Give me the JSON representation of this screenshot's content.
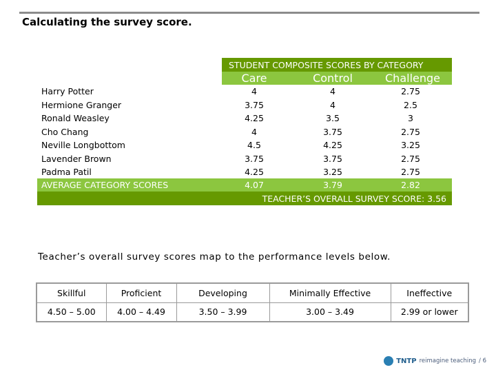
{
  "title": "Calculating the survey score.",
  "table": {
    "header": "STUDENT COMPOSITE SCORES BY CATEGORY",
    "columns": [
      "Care",
      "Control",
      "Challenge"
    ],
    "rows": [
      {
        "name": "Harry Potter",
        "care": "4",
        "control": "4",
        "challenge": "2.75"
      },
      {
        "name": "Hermione Granger",
        "care": "3.75",
        "control": "4",
        "challenge": "2.5"
      },
      {
        "name": "Ronald Weasley",
        "care": "4.25",
        "control": "3.5",
        "challenge": "3"
      },
      {
        "name": "Cho Chang",
        "care": "4",
        "control": "3.75",
        "challenge": "2.75"
      },
      {
        "name": "Neville Longbottom",
        "care": "4.5",
        "control": "4.25",
        "challenge": "3.25"
      },
      {
        "name": "Lavender Brown",
        "care": "3.75",
        "control": "3.75",
        "challenge": "2.75"
      },
      {
        "name": "Padma Patil",
        "care": "4.25",
        "control": "3.25",
        "challenge": "2.75"
      }
    ],
    "average": {
      "label": "AVERAGE CATEGORY SCORES",
      "care": "4.07",
      "control": "3.79",
      "challenge": "2.82"
    },
    "overall": "TEACHER’S OVERALL SURVEY SCORE: 3.56"
  },
  "map_text": "Teacher’s overall survey scores map to the performance levels below.",
  "levels": {
    "headers": [
      "Skillful",
      "Proficient",
      "Developing",
      "Minimally Effective",
      "Ineffective"
    ],
    "ranges": [
      "4.50 – 5.00",
      "4.00 – 4.49",
      "3.50 – 3.99",
      "3.00 – 3.49",
      "2.99 or lower"
    ]
  },
  "footer": {
    "brand": "TNTP",
    "tagline": "reimagine teaching",
    "page": "/ 6"
  }
}
